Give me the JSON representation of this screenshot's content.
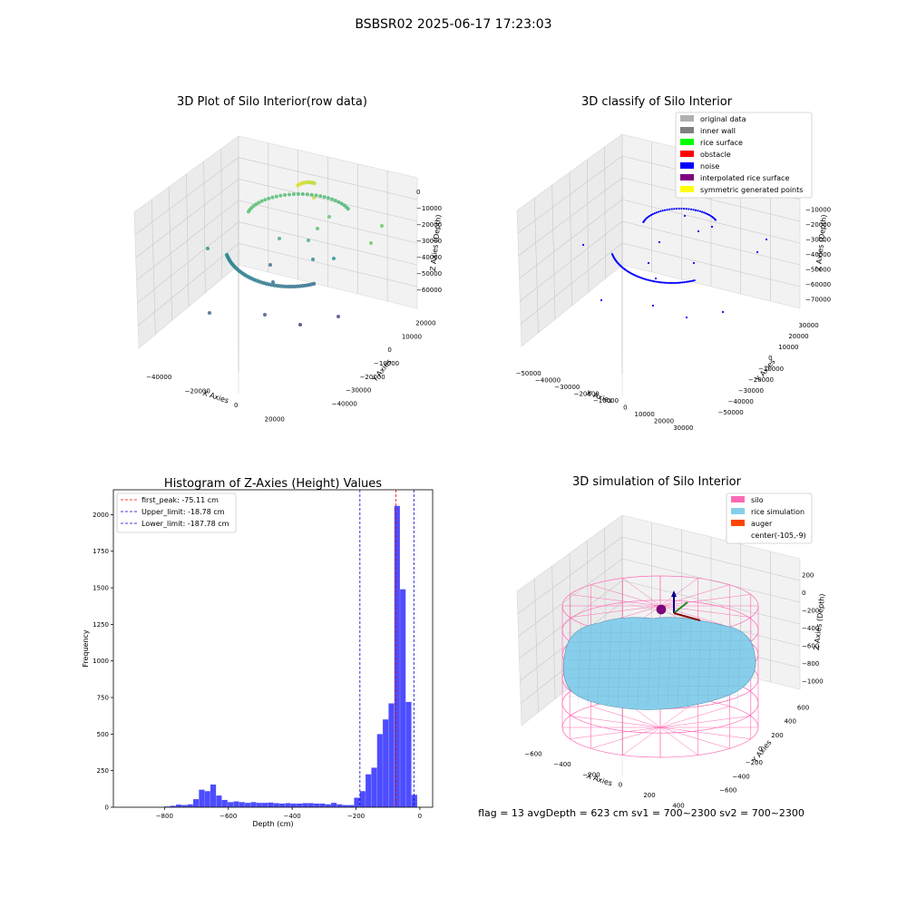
{
  "suptitle": "BSBSR02 2025-06-17 17:23:03",
  "footer": "flag = 13   avgDepth = 623 cm  sv1 = 700~2300  sv2 = 700~2300",
  "chart_data": [
    {
      "type": "scatter",
      "title": "3D Plot of Silo Interior(row data)",
      "xlabel": "X Axies",
      "ylabel": "Y Axies",
      "zlabel": "Z Axies (Depth)",
      "x_ticks": [
        "−40000",
        "−20000",
        "0",
        "20000"
      ],
      "y_ticks": [
        "−40000",
        "−30000",
        "−20000",
        "−10000",
        "0",
        "10000",
        "20000"
      ],
      "z_ticks": [
        "0",
        "−10000",
        "−20000",
        "−30000",
        "−40000",
        "−50000",
        "−60000"
      ]
    },
    {
      "type": "scatter",
      "title": "3D classify of Silo Interior",
      "xlabel": "X Axies",
      "ylabel": "Y Axies",
      "zlabel": "Z Axies (Depth)",
      "x_ticks": [
        "−50000",
        "−40000",
        "−30000",
        "−20000",
        "−10000",
        "0",
        "10000",
        "20000",
        "30000"
      ],
      "y_ticks": [
        "−50000",
        "−40000",
        "−30000",
        "−20000",
        "−10000",
        "0",
        "10000",
        "20000",
        "30000"
      ],
      "z_ticks": [
        "−10000",
        "−20000",
        "−30000",
        "−40000",
        "−50000",
        "−60000",
        "−70000"
      ],
      "legend": [
        {
          "label": "original data",
          "color": "#b0b0b0"
        },
        {
          "label": "inner wall",
          "color": "#808080"
        },
        {
          "label": "rice surface",
          "color": "#00ff00"
        },
        {
          "label": "obstacle",
          "color": "#ff0000"
        },
        {
          "label": "noise",
          "color": "#0000ff"
        },
        {
          "label": "interpolated rice surface",
          "color": "#800080"
        },
        {
          "label": "symmetric generated points",
          "color": "#ffff00"
        }
      ]
    },
    {
      "type": "bar",
      "title": "Histogram of Z-Axies (Height) Values",
      "xlabel": "Depth (cm)",
      "ylabel": "Frequency",
      "xlim": [
        -960,
        40
      ],
      "ylim": [
        0,
        2170
      ],
      "x_ticks": [
        -800,
        -600,
        -400,
        -200,
        0
      ],
      "x_tick_labels": [
        "−800",
        "−600",
        "−400",
        "−200",
        "0"
      ],
      "y_ticks": [
        0,
        250,
        500,
        750,
        1000,
        1250,
        1500,
        1750,
        2000
      ],
      "bin_width": 18,
      "bins": [
        [
          -800,
          5
        ],
        [
          -782,
          10
        ],
        [
          -764,
          18
        ],
        [
          -746,
          15
        ],
        [
          -728,
          20
        ],
        [
          -710,
          55
        ],
        [
          -692,
          120
        ],
        [
          -674,
          110
        ],
        [
          -656,
          155
        ],
        [
          -638,
          80
        ],
        [
          -620,
          50
        ],
        [
          -602,
          35
        ],
        [
          -584,
          40
        ],
        [
          -566,
          35
        ],
        [
          -548,
          30
        ],
        [
          -530,
          35
        ],
        [
          -512,
          30
        ],
        [
          -494,
          30
        ],
        [
          -476,
          32
        ],
        [
          -458,
          28
        ],
        [
          -440,
          25
        ],
        [
          -422,
          28
        ],
        [
          -404,
          25
        ],
        [
          -386,
          25
        ],
        [
          -368,
          28
        ],
        [
          -350,
          28
        ],
        [
          -332,
          25
        ],
        [
          -314,
          25
        ],
        [
          -296,
          20
        ],
        [
          -278,
          30
        ],
        [
          -260,
          20
        ],
        [
          -242,
          15
        ],
        [
          -224,
          15
        ],
        [
          -206,
          65
        ],
        [
          -188,
          110
        ],
        [
          -170,
          225
        ],
        [
          -152,
          270
        ],
        [
          -134,
          500
        ],
        [
          -116,
          600
        ],
        [
          -98,
          710
        ],
        [
          -80,
          2060
        ],
        [
          -62,
          1490
        ],
        [
          -44,
          720
        ],
        [
          -26,
          85
        ]
      ],
      "vlines": [
        {
          "x": -75.11,
          "color": "#ff0000",
          "label": "first_peak: -75.11 cm"
        },
        {
          "x": -18.78,
          "color": "#0000cc",
          "label": "Upper_limit: -18.78 cm"
        },
        {
          "x": -187.78,
          "color": "#0000cc",
          "label": "Lower_limit: -187.78 cm"
        }
      ],
      "bar_color": "#4d4dff"
    },
    {
      "type": "surface",
      "title": "3D simulation of Silo Interior",
      "xlabel": "X Axies",
      "ylabel": "Y Axies",
      "zlabel": "Z Axies (Depth)",
      "x_ticks": [
        "−600",
        "−400",
        "−200",
        "0",
        "200",
        "400"
      ],
      "y_ticks": [
        "−600",
        "−400",
        "−200",
        "0",
        "200",
        "400",
        "600"
      ],
      "z_ticks": [
        "200",
        "0",
        "−200",
        "−400",
        "−600",
        "−800",
        "−1000"
      ],
      "legend": [
        {
          "label": "silo",
          "color": "#ff69b4"
        },
        {
          "label": "rice simulation",
          "color": "#87ceeb"
        },
        {
          "label": "auger",
          "color": "#ff4500"
        },
        {
          "label": "center(-105,-9)",
          "color": "none"
        }
      ]
    }
  ]
}
